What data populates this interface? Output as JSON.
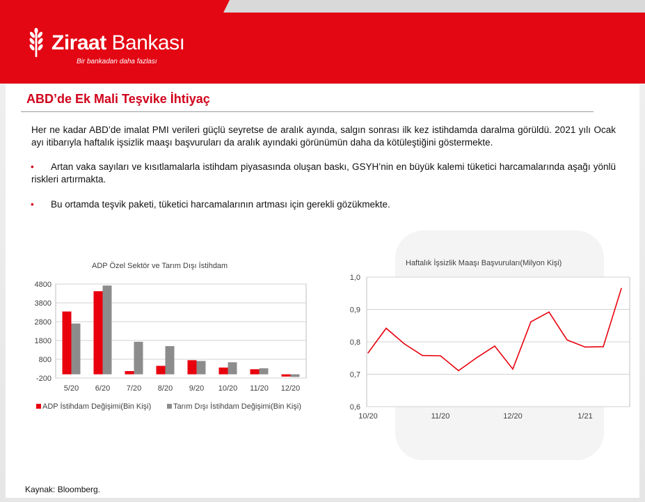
{
  "brand": {
    "name_bold": "Ziraat",
    "name_regular": " Bankası",
    "tagline": "Bir bankadan daha fazlası",
    "colors": {
      "primary_red": "#e30613",
      "title_red": "#d0021b",
      "bar_red": "#e8000d",
      "bar_grey": "#8c8c8c"
    }
  },
  "slide": {
    "title": "ABD’de Ek Mali Teşvike İhtiyaç",
    "intro": "Her ne kadar ABD’de imalat PMI verileri güçlü seyretse de aralık ayında, salgın sonrası ilk kez istihdamda daralma görüldü. 2021 yılı Ocak ayı itibarıyla haftalık işsizlik maaşı başvuruları da aralık ayındaki görünümün daha da kötüleştiğini göstermekte.",
    "bullets": [
      "Artan vaka sayıları ve kısıtlamalarla istihdam piyasasında oluşan baskı, GSYH’nin en büyük kalemi tüketici harcamalarında aşağı yönlü riskleri artırmakta.",
      "Bu ortamda teşvik paketi, tüketici harcamalarının artması için gerekli gözükmekte."
    ],
    "bullet_symbol": "•",
    "source": "Kaynak: Bloomberg."
  },
  "chart_data": [
    {
      "type": "bar",
      "title": "ADP Özel Sektör ve Tarım Dışı İstihdam",
      "categories": [
        "5/20",
        "6/20",
        "7/20",
        "8/20",
        "9/20",
        "10/20",
        "11/20",
        "12/20"
      ],
      "series": [
        {
          "name": "ADP İstihdam Değişimi(Bin Kişi)",
          "color": "#e8000d",
          "values": [
            3340,
            4420,
            170,
            450,
            750,
            360,
            270,
            -120
          ]
        },
        {
          "name": "Tarım Dışı İstihdam Değişimi(Bin Kişi)",
          "color": "#8c8c8c",
          "values": [
            2700,
            4720,
            1730,
            1500,
            710,
            640,
            320,
            -140
          ]
        }
      ],
      "yticks": [
        "4800",
        "3800",
        "2800",
        "1800",
        "800",
        "-200"
      ],
      "ylim": [
        -200,
        4800
      ],
      "grid": true,
      "legend": "bottom"
    },
    {
      "type": "line",
      "title": "Haftalık İşsizlik Maaşı Başvuruları(Milyon Kişi)",
      "xticks": [
        "10/20",
        "11/20",
        "12/20",
        "1/21"
      ],
      "yticks": [
        "1,0",
        "0,9",
        "0,8",
        "0,7",
        "0,6"
      ],
      "ylim": [
        0.6,
        1.0
      ],
      "series": [
        {
          "color": "#e8000d",
          "values": [
            0.766,
            0.842,
            0.794,
            0.758,
            0.757,
            0.711,
            0.751,
            0.787,
            0.716,
            0.862,
            0.892,
            0.806,
            0.784,
            0.785,
            0.965
          ]
        }
      ],
      "grid": true
    }
  ]
}
